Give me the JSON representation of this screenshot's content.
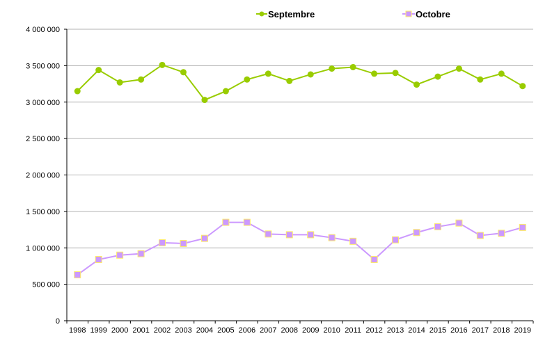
{
  "chart_data": {
    "type": "line",
    "title": "",
    "xlabel": "",
    "ylabel": "",
    "ylim": [
      0,
      4000000
    ],
    "yticks": [
      0,
      500000,
      1000000,
      1500000,
      2000000,
      2500000,
      3000000,
      3500000,
      4000000
    ],
    "ytick_labels": [
      "0",
      "500 000",
      "1 000 000",
      "1 500 000",
      "2 000 000",
      "2 500 000",
      "3 000 000",
      "3 500 000",
      "4 000 000"
    ],
    "grid": true,
    "legend_position": "top",
    "categories": [
      "1998",
      "1999",
      "2000",
      "2001",
      "2002",
      "2003",
      "2004",
      "2005",
      "2006",
      "2007",
      "2008",
      "2009",
      "2010",
      "2011",
      "2012",
      "2013",
      "2014",
      "2015",
      "2016",
      "2017",
      "2018",
      "2019"
    ],
    "series": [
      {
        "name": "Septembre",
        "color": "#99cc00",
        "marker": "circle",
        "values": [
          3150000,
          3440000,
          3270000,
          3310000,
          3510000,
          3410000,
          3030000,
          3150000,
          3310000,
          3390000,
          3290000,
          3380000,
          3460000,
          3480000,
          3390000,
          3400000,
          3240000,
          3350000,
          3460000,
          3310000,
          3390000,
          3220000
        ]
      },
      {
        "name": "Octobre",
        "color": "#cc99ff",
        "marker": "square",
        "values": [
          630000,
          840000,
          900000,
          920000,
          1070000,
          1060000,
          1130000,
          1350000,
          1350000,
          1190000,
          1180000,
          1180000,
          1140000,
          1090000,
          840000,
          1110000,
          1210000,
          1290000,
          1340000,
          1170000,
          1200000,
          1280000
        ]
      }
    ]
  }
}
